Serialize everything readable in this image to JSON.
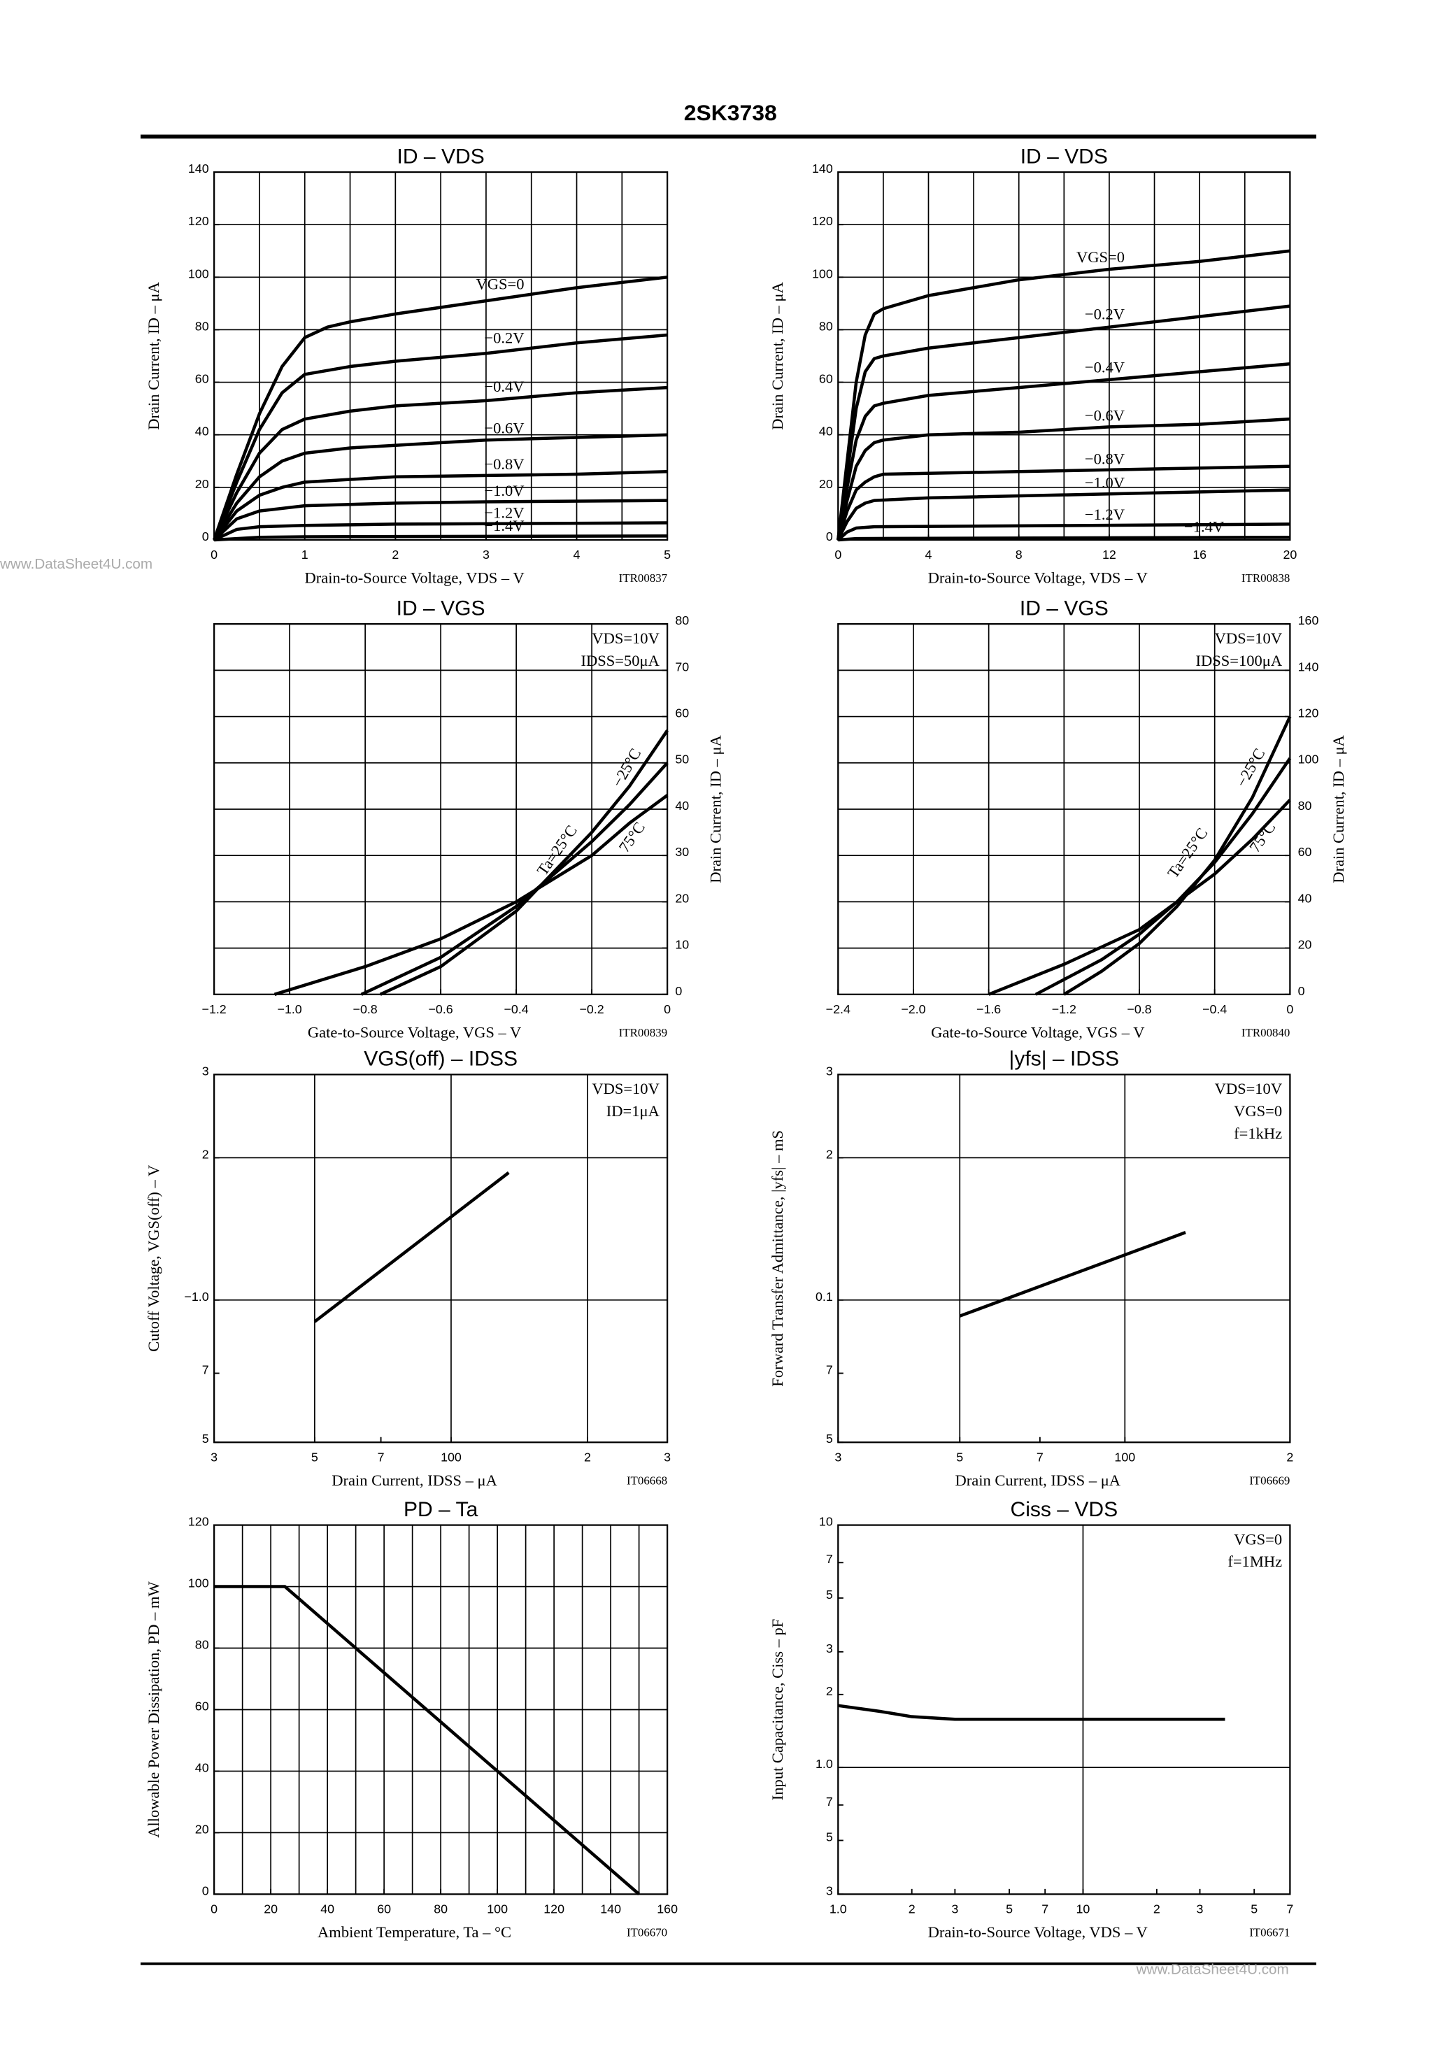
{
  "header": {
    "title": "2SK3738"
  },
  "watermarks": [
    "www.DataSheet4U.com",
    "www.DataSheet4U.com"
  ],
  "chart_data": [
    {
      "type": "line",
      "title": "ID – VDS",
      "xlabel": "Drain-to-Source Voltage, VDS – V",
      "ylabel": "Drain Current, ID – μA",
      "figure_id": "ITR00837",
      "xlim": [
        0,
        5
      ],
      "ylim": [
        0,
        140
      ],
      "xticks": [
        0,
        1,
        2,
        3,
        4,
        5
      ],
      "yticks": [
        0,
        20,
        40,
        60,
        80,
        100,
        120,
        140
      ],
      "xgrid": [
        0,
        0.5,
        1,
        1.5,
        2,
        2.5,
        3,
        3.5,
        4,
        4.5,
        5
      ],
      "grid": true,
      "series": [
        {
          "name": "VGS=0",
          "color": "#000000",
          "x": [
            0,
            0.25,
            0.5,
            0.75,
            1,
            1.25,
            1.5,
            2,
            3,
            4,
            5
          ],
          "values": [
            0,
            25,
            48,
            66,
            77,
            81,
            83,
            86,
            91,
            96,
            100
          ]
        },
        {
          "name": "−0.2V",
          "color": "#000000",
          "x": [
            0,
            0.25,
            0.5,
            0.75,
            1,
            1.5,
            2,
            3,
            4,
            5
          ],
          "values": [
            0,
            22,
            42,
            56,
            63,
            66,
            68,
            71,
            75,
            78
          ]
        },
        {
          "name": "−0.4V",
          "color": "#000000",
          "x": [
            0,
            0.25,
            0.5,
            0.75,
            1,
            1.5,
            2,
            3,
            4,
            5
          ],
          "values": [
            0,
            18,
            33,
            42,
            46,
            49,
            51,
            53,
            56,
            58
          ]
        },
        {
          "name": "−0.6V",
          "color": "#000000",
          "x": [
            0,
            0.25,
            0.5,
            0.75,
            1,
            1.5,
            2,
            3,
            4,
            5
          ],
          "values": [
            0,
            14,
            24,
            30,
            33,
            35,
            36,
            38,
            39,
            40
          ]
        },
        {
          "name": "−0.8V",
          "color": "#000000",
          "x": [
            0,
            0.25,
            0.5,
            0.75,
            1,
            1.5,
            2,
            3,
            4,
            5
          ],
          "values": [
            0,
            11,
            17,
            20,
            22,
            23,
            24,
            24.5,
            25,
            26
          ]
        },
        {
          "name": "−1.0V",
          "color": "#000000",
          "x": [
            0,
            0.25,
            0.5,
            1,
            1.5,
            2,
            3,
            5
          ],
          "values": [
            0,
            8,
            11,
            13,
            13.5,
            14,
            14.5,
            15
          ]
        },
        {
          "name": "−1.2V",
          "color": "#000000",
          "x": [
            0,
            0.25,
            0.5,
            1,
            2,
            5
          ],
          "values": [
            0,
            4,
            5,
            5.5,
            6,
            6.5
          ]
        },
        {
          "name": "−1.4V",
          "color": "#000000",
          "x": [
            0,
            0.5,
            1,
            5
          ],
          "values": [
            0,
            1,
            1.2,
            1.5
          ]
        }
      ]
    },
    {
      "type": "line",
      "title": "ID – VDS",
      "xlabel": "Drain-to-Source Voltage, VDS – V",
      "ylabel": "Drain Current, ID – μA",
      "figure_id": "ITR00838",
      "xlim": [
        0,
        20
      ],
      "ylim": [
        0,
        140
      ],
      "xticks": [
        0,
        4,
        8,
        12,
        16,
        20
      ],
      "yticks": [
        0,
        20,
        40,
        60,
        80,
        100,
        120,
        140
      ],
      "xgrid": [
        0,
        2,
        4,
        6,
        8,
        10,
        12,
        14,
        16,
        18,
        20
      ],
      "grid": true,
      "series": [
        {
          "name": "VGS=0",
          "color": "#000000",
          "x": [
            0,
            0.4,
            0.8,
            1.2,
            1.6,
            2,
            4,
            8,
            12,
            16,
            20
          ],
          "values": [
            0,
            30,
            60,
            78,
            86,
            88,
            93,
            99,
            103,
            106,
            110
          ]
        },
        {
          "name": "−0.2V",
          "color": "#000000",
          "x": [
            0,
            0.4,
            0.8,
            1.2,
            1.6,
            2,
            4,
            8,
            12,
            16,
            20
          ],
          "values": [
            0,
            25,
            50,
            64,
            69,
            70,
            73,
            77,
            81,
            85,
            89
          ]
        },
        {
          "name": "−0.4V",
          "color": "#000000",
          "x": [
            0,
            0.4,
            0.8,
            1.2,
            1.6,
            2,
            4,
            8,
            12,
            16,
            20
          ],
          "values": [
            0,
            20,
            38,
            47,
            51,
            52,
            55,
            58,
            61,
            64,
            67
          ]
        },
        {
          "name": "−0.6V",
          "color": "#000000",
          "x": [
            0,
            0.4,
            0.8,
            1.2,
            1.6,
            2,
            4,
            8,
            12,
            16,
            20
          ],
          "values": [
            0,
            15,
            28,
            34,
            37,
            38,
            40,
            41,
            43,
            44,
            46
          ]
        },
        {
          "name": "−0.8V",
          "color": "#000000",
          "x": [
            0,
            0.4,
            0.8,
            1.2,
            1.6,
            2,
            8,
            20
          ],
          "values": [
            0,
            11,
            19,
            22,
            24,
            25,
            26,
            28
          ]
        },
        {
          "name": "−1.0V",
          "color": "#000000",
          "x": [
            0,
            0.4,
            0.8,
            1.2,
            1.6,
            4,
            20
          ],
          "values": [
            0,
            7,
            12,
            14,
            15,
            16,
            19
          ]
        },
        {
          "name": "−1.2V",
          "color": "#000000",
          "x": [
            0,
            0.4,
            0.8,
            1.6,
            20
          ],
          "values": [
            0,
            3,
            4.5,
            5,
            6
          ]
        },
        {
          "name": "−1.4V",
          "color": "#000000",
          "x": [
            0,
            0.8,
            20
          ],
          "values": [
            0,
            0.5,
            1
          ]
        }
      ]
    },
    {
      "type": "line",
      "title": "ID – VGS",
      "xlabel": "Gate-to-Source Voltage, VGS – V",
      "ylabel": "Drain Current, ID – μA",
      "figure_id": "ITR00839",
      "xlim": [
        -1.2,
        0
      ],
      "ylim": [
        0,
        80
      ],
      "yaxis_side": "right",
      "xticks": [
        {
          "value": -1.2,
          "label": "−1.2"
        },
        {
          "value": -1.0,
          "label": "−1.0"
        },
        {
          "value": -0.8,
          "label": "−0.8"
        },
        {
          "value": -0.6,
          "label": "−0.6"
        },
        {
          "value": -0.4,
          "label": "−0.4"
        },
        {
          "value": -0.2,
          "label": "−0.2"
        },
        0
      ],
      "yticks": [
        0,
        10,
        20,
        30,
        40,
        50,
        60,
        70,
        80
      ],
      "grid": true,
      "annotations": [
        "VDS=10V",
        "IDSS=50μA"
      ],
      "series": [
        {
          "name": "−25°C",
          "color": "#000000",
          "x": [
            -0.76,
            -0.6,
            -0.4,
            -0.2,
            -0.1,
            0
          ],
          "values": [
            0,
            6,
            18,
            35,
            45,
            57
          ]
        },
        {
          "name": "Ta=25°C",
          "color": "#000000",
          "x": [
            -0.81,
            -0.6,
            -0.4,
            -0.2,
            -0.1,
            0
          ],
          "values": [
            0,
            8,
            19,
            33,
            41,
            50
          ]
        },
        {
          "name": "75°C",
          "color": "#000000",
          "x": [
            -1.04,
            -0.8,
            -0.6,
            -0.4,
            -0.2,
            -0.1,
            0
          ],
          "values": [
            0,
            6,
            12,
            20,
            30,
            37,
            43
          ]
        }
      ]
    },
    {
      "type": "line",
      "title": "ID – VGS",
      "xlabel": "Gate-to-Source Voltage, VGS – V",
      "ylabel": "Drain Current, ID – μA",
      "figure_id": "ITR00840",
      "xlim": [
        -2.4,
        0
      ],
      "ylim": [
        0,
        160
      ],
      "yaxis_side": "right",
      "xticks": [
        {
          "value": -2.4,
          "label": "−2.4"
        },
        {
          "value": -2.0,
          "label": "−2.0"
        },
        {
          "value": -1.6,
          "label": "−1.6"
        },
        {
          "value": -1.2,
          "label": "−1.2"
        },
        {
          "value": -0.8,
          "label": "−0.8"
        },
        {
          "value": -0.4,
          "label": "−0.4"
        },
        0
      ],
      "yticks": [
        0,
        20,
        40,
        60,
        80,
        100,
        120,
        140,
        160
      ],
      "grid": true,
      "annotations": [
        "VDS=10V",
        "IDSS=100μA"
      ],
      "series": [
        {
          "name": "−25°C",
          "color": "#000000",
          "x": [
            -1.2,
            -1.0,
            -0.8,
            -0.6,
            -0.4,
            -0.2,
            0
          ],
          "values": [
            0,
            10,
            22,
            38,
            58,
            85,
            120
          ]
        },
        {
          "name": "Ta=25°C",
          "color": "#000000",
          "x": [
            -1.35,
            -1.0,
            -0.8,
            -0.6,
            -0.4,
            -0.2,
            0
          ],
          "values": [
            0,
            15,
            26,
            40,
            57,
            78,
            102
          ]
        },
        {
          "name": "75°C",
          "color": "#000000",
          "x": [
            -1.6,
            -1.2,
            -0.8,
            -0.6,
            -0.4,
            -0.2,
            0
          ],
          "values": [
            0,
            13,
            28,
            40,
            52,
            67,
            84
          ]
        }
      ]
    },
    {
      "type": "line",
      "title": "VGS(off) – IDSS",
      "xlabel": "Drain Current, IDSS – μA",
      "ylabel": "Cutoff Voltage, VGS(off) – V",
      "figure_id": "IT06668",
      "xscale": "log",
      "yscale": "log",
      "xlim": [
        30,
        300
      ],
      "ylim": [
        0.5,
        3
      ],
      "xticks": [
        {
          "value": 30,
          "label": "3"
        },
        {
          "value": 50,
          "label": "5"
        },
        {
          "value": 70,
          "label": "7"
        },
        100,
        {
          "value": 200,
          "label": "2"
        },
        {
          "value": 300,
          "label": "3"
        }
      ],
      "yticks": [
        {
          "value": 0.5,
          "label": "5"
        },
        {
          "value": 0.7,
          "label": "7"
        },
        {
          "value": 1,
          "label": "−1.0"
        },
        2,
        3
      ],
      "xgrid": [
        50,
        100,
        200
      ],
      "ygrid": [
        1,
        2
      ],
      "grid": true,
      "annotations": [
        "VDS=10V",
        "ID=1μA"
      ],
      "series": [
        {
          "color": "#000000",
          "x": [
            50,
            134
          ],
          "values": [
            0.9,
            1.86
          ]
        }
      ]
    },
    {
      "type": "line",
      "title": "|yfs| – IDSS",
      "xlabel": "Drain Current, IDSS – μA",
      "ylabel": "Forward Transfer Admittance, |yfs| – mS",
      "figure_id": "IT06669",
      "xscale": "log",
      "yscale": "log",
      "xlim": [
        30,
        200
      ],
      "ylim": [
        0.05,
        0.3
      ],
      "xticks": [
        {
          "value": 30,
          "label": "3"
        },
        {
          "value": 50,
          "label": "5"
        },
        {
          "value": 70,
          "label": "7"
        },
        100,
        {
          "value": 200,
          "label": "2"
        }
      ],
      "yticks": [
        {
          "value": 0.05,
          "label": "5"
        },
        {
          "value": 0.07,
          "label": "7"
        },
        0.1,
        {
          "value": 0.2,
          "label": "2"
        },
        {
          "value": 0.3,
          "label": "3"
        }
      ],
      "xgrid": [
        50,
        100
      ],
      "ygrid": [
        0.1,
        0.2
      ],
      "grid": true,
      "annotations": [
        "VDS=10V",
        "VGS=0",
        "f=1kHz"
      ],
      "series": [
        {
          "color": "#000000",
          "x": [
            50,
            129
          ],
          "values": [
            0.0925,
            0.139
          ]
        }
      ]
    },
    {
      "type": "line",
      "title": "PD – Ta",
      "xlabel": "Ambient Temperature, Ta – °C",
      "ylabel": "Allowable Power Dissipation, PD – mW",
      "figure_id": "IT06670",
      "xlim": [
        0,
        160
      ],
      "ylim": [
        0,
        120
      ],
      "xticks": [
        0,
        20,
        40,
        60,
        80,
        100,
        120,
        140,
        160
      ],
      "yticks": [
        0,
        20,
        40,
        60,
        80,
        100,
        120
      ],
      "xgrid": [
        0,
        10,
        20,
        30,
        40,
        50,
        60,
        70,
        80,
        90,
        100,
        110,
        120,
        130,
        140,
        150,
        160
      ],
      "grid": true,
      "series": [
        {
          "color": "#000000",
          "x": [
            0,
            25,
            150
          ],
          "values": [
            100,
            100,
            0
          ]
        }
      ]
    },
    {
      "type": "line",
      "title": "Ciss – VDS",
      "xlabel": "Drain-to-Source Voltage, VDS – V",
      "ylabel": "Input Capacitance, Ciss – pF",
      "figure_id": "IT06671",
      "xscale": "log",
      "yscale": "log",
      "xlim": [
        1,
        70
      ],
      "ylim": [
        0.3,
        10
      ],
      "xticks": [
        {
          "value": 1,
          "label": "1.0"
        },
        2,
        3,
        5,
        7,
        10,
        {
          "value": 20,
          "label": "2"
        },
        {
          "value": 30,
          "label": "3"
        },
        {
          "value": 50,
          "label": "5"
        },
        {
          "value": 70,
          "label": "7"
        }
      ],
      "yticks": [
        {
          "value": 0.3,
          "label": "3"
        },
        {
          "value": 0.5,
          "label": "5"
        },
        {
          "value": 0.7,
          "label": "7"
        },
        {
          "value": 1,
          "label": "1.0"
        },
        2,
        3,
        5,
        7,
        10
      ],
      "xgrid": [
        10
      ],
      "ygrid": [
        1
      ],
      "grid": true,
      "annotations": [
        "VGS=0",
        "f=1MHz"
      ],
      "series": [
        {
          "color": "#000000",
          "x": [
            1,
            1.5,
            2,
            3,
            5,
            10,
            38
          ],
          "values": [
            1.8,
            1.7,
            1.62,
            1.58,
            1.58,
            1.58,
            1.58
          ]
        }
      ]
    }
  ]
}
